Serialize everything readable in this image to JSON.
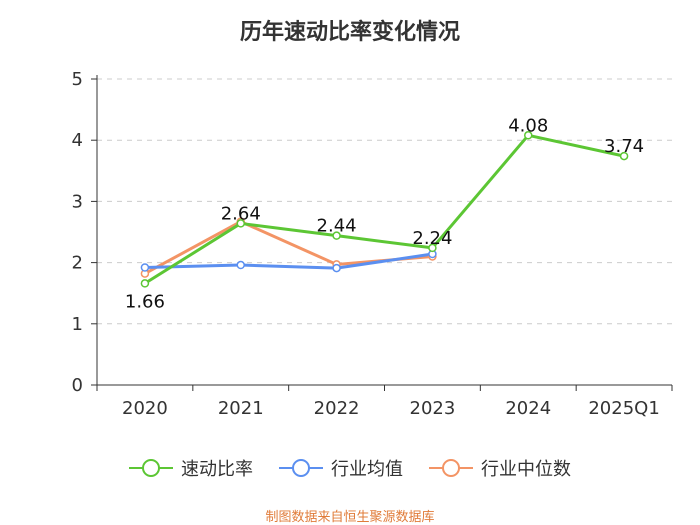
{
  "chart_data": {
    "type": "line",
    "title": "历年速动比率变化情况",
    "categories": [
      "2020",
      "2021",
      "2022",
      "2023",
      "2024",
      "2025Q1"
    ],
    "ylim": [
      0,
      5
    ],
    "yticks": [
      "0",
      "1",
      "2",
      "3",
      "4",
      "5"
    ],
    "grid": true,
    "legend_position": "bottom",
    "series": [
      {
        "name": "速动比率",
        "color": "#5cc634",
        "values": [
          1.66,
          2.64,
          2.44,
          2.24,
          4.08,
          3.74
        ],
        "labels": [
          "1.66",
          "2.64",
          "2.44",
          "2.24",
          "4.08",
          "3.74"
        ]
      },
      {
        "name": "行业均值",
        "color": "#5b8ff0",
        "values": [
          1.92,
          1.96,
          1.91,
          2.14,
          null,
          null
        ]
      },
      {
        "name": "行业中位数",
        "color": "#f39465",
        "values": [
          1.82,
          2.67,
          1.97,
          2.1,
          null,
          null
        ]
      }
    ]
  },
  "source": "制图数据来自恒生聚源数据库"
}
